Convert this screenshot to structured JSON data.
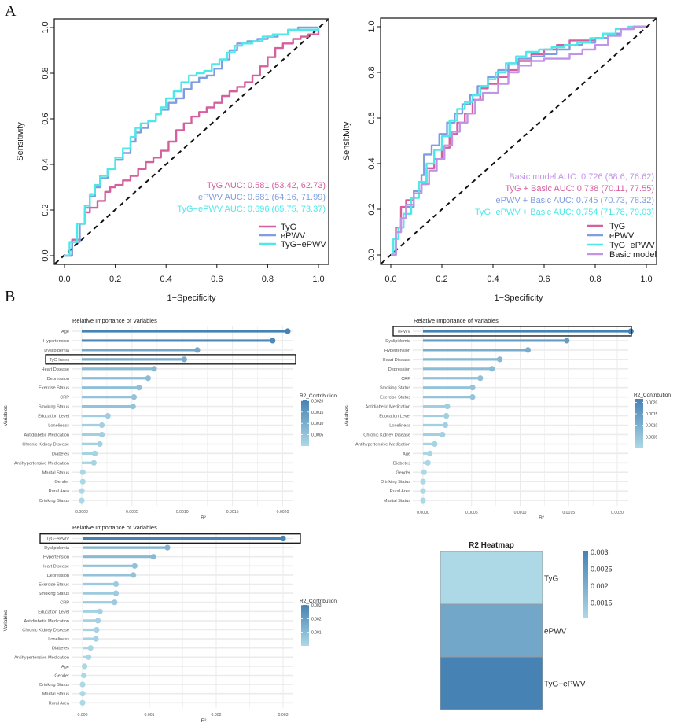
{
  "panels": {
    "a_label": "A",
    "b_label": "B"
  },
  "chart_data": [
    {
      "id": "roc_single",
      "type": "line",
      "title": "",
      "xlabel": "1−Specificity",
      "ylabel": "Sensitivity",
      "xlim": [
        0,
        1
      ],
      "ylim": [
        0,
        1
      ],
      "x_ticks": [
        "0.0",
        "0.2",
        "0.4",
        "0.6",
        "0.8",
        "1.0"
      ],
      "y_ticks": [
        "0.0",
        "0.2",
        "0.4",
        "0.6",
        "0.8",
        "1.0"
      ],
      "reference_line": "diagonal dashed",
      "legend_position": "bottom-right",
      "series": [
        {
          "name": "TyG",
          "color": "#d4609e",
          "auc_text": "TyG AUC: 0.581 (53.42, 62.73)",
          "x": [
            0,
            0.03,
            0.06,
            0.08,
            0.1,
            0.13,
            0.16,
            0.18,
            0.2,
            0.23,
            0.26,
            0.29,
            0.32,
            0.35,
            0.38,
            0.41,
            0.44,
            0.47,
            0.5,
            0.53,
            0.56,
            0.59,
            0.62,
            0.65,
            0.68,
            0.71,
            0.74,
            0.77,
            0.8,
            0.83,
            0.86,
            0.9,
            0.93,
            0.96,
            1.0
          ],
          "y": [
            0,
            0.07,
            0.14,
            0.19,
            0.21,
            0.24,
            0.28,
            0.3,
            0.31,
            0.33,
            0.35,
            0.38,
            0.41,
            0.43,
            0.46,
            0.5,
            0.55,
            0.58,
            0.61,
            0.63,
            0.65,
            0.67,
            0.7,
            0.72,
            0.74,
            0.76,
            0.79,
            0.83,
            0.87,
            0.91,
            0.93,
            0.95,
            0.96,
            0.97,
            1.0
          ]
        },
        {
          "name": "ePWV",
          "color": "#7f9de0",
          "auc_text": "ePWV AUC: 0.681 (64.16, 71.99)",
          "x": [
            0,
            0.03,
            0.06,
            0.08,
            0.1,
            0.12,
            0.14,
            0.17,
            0.2,
            0.23,
            0.26,
            0.28,
            0.3,
            0.33,
            0.36,
            0.38,
            0.41,
            0.44,
            0.47,
            0.5,
            0.53,
            0.56,
            0.59,
            0.62,
            0.65,
            0.68,
            0.72,
            0.76,
            0.8,
            0.84,
            0.88,
            0.92,
            0.96,
            1.0
          ],
          "y": [
            0,
            0.06,
            0.14,
            0.21,
            0.26,
            0.3,
            0.34,
            0.38,
            0.42,
            0.45,
            0.5,
            0.54,
            0.56,
            0.59,
            0.62,
            0.64,
            0.67,
            0.69,
            0.73,
            0.76,
            0.78,
            0.79,
            0.82,
            0.86,
            0.9,
            0.93,
            0.94,
            0.95,
            0.96,
            0.97,
            0.99,
            1.0,
            1.0,
            1.0
          ]
        },
        {
          "name": "TyG−ePWV",
          "color": "#4de8e8",
          "auc_text": "TyG−ePWV AUC: 0.696 (65.75, 73.37)",
          "x": [
            0,
            0.02,
            0.05,
            0.08,
            0.1,
            0.12,
            0.14,
            0.17,
            0.2,
            0.23,
            0.26,
            0.28,
            0.3,
            0.33,
            0.36,
            0.38,
            0.4,
            0.43,
            0.46,
            0.49,
            0.52,
            0.55,
            0.58,
            0.61,
            0.64,
            0.67,
            0.7,
            0.74,
            0.78,
            0.82,
            0.86,
            0.88,
            0.92,
            0.96,
            1.0
          ],
          "y": [
            0,
            0.06,
            0.14,
            0.22,
            0.27,
            0.31,
            0.35,
            0.38,
            0.43,
            0.47,
            0.52,
            0.56,
            0.58,
            0.59,
            0.62,
            0.65,
            0.69,
            0.72,
            0.76,
            0.79,
            0.8,
            0.81,
            0.84,
            0.86,
            0.89,
            0.92,
            0.93,
            0.94,
            0.96,
            0.97,
            0.97,
            0.99,
            0.99,
            0.99,
            1.0
          ]
        }
      ]
    },
    {
      "id": "roc_combined",
      "type": "line",
      "title": "",
      "xlabel": "1−Specificity",
      "ylabel": "Sensitivity",
      "xlim": [
        0,
        1
      ],
      "ylim": [
        0,
        1
      ],
      "x_ticks": [
        "0.0",
        "0.2",
        "0.4",
        "0.6",
        "0.8",
        "1.0"
      ],
      "y_ticks": [
        "0.0",
        "0.2",
        "0.4",
        "0.6",
        "0.8",
        "1.0"
      ],
      "reference_line": "diagonal dashed",
      "legend_position": "bottom-right",
      "auc_order": [
        "Basic model",
        "TyG",
        "ePWV",
        "TyG−ePWV"
      ],
      "series": [
        {
          "name": "TyG",
          "color": "#d4609e",
          "auc_text": "TyG + Basic AUC: 0.738 (70.11, 77.55)",
          "x": [
            0,
            0.02,
            0.04,
            0.06,
            0.09,
            0.12,
            0.14,
            0.17,
            0.2,
            0.23,
            0.26,
            0.29,
            0.32,
            0.35,
            0.38,
            0.42,
            0.46,
            0.5,
            0.55,
            0.6,
            0.65,
            0.7,
            0.75,
            0.8,
            0.85,
            0.9,
            0.95,
            1.0
          ],
          "y": [
            0,
            0.12,
            0.21,
            0.24,
            0.27,
            0.31,
            0.38,
            0.42,
            0.47,
            0.53,
            0.58,
            0.62,
            0.68,
            0.73,
            0.75,
            0.78,
            0.81,
            0.85,
            0.88,
            0.9,
            0.92,
            0.94,
            0.94,
            0.95,
            0.97,
            0.99,
            1.0,
            1.0
          ]
        },
        {
          "name": "ePWV",
          "color": "#7f9de0",
          "auc_text": "ePWV + Basic AUC: 0.745 (70.73, 78.32)",
          "x": [
            0,
            0.02,
            0.04,
            0.06,
            0.09,
            0.12,
            0.13,
            0.16,
            0.19,
            0.22,
            0.25,
            0.28,
            0.31,
            0.34,
            0.38,
            0.42,
            0.46,
            0.5,
            0.55,
            0.6,
            0.65,
            0.7,
            0.75,
            0.8,
            0.85,
            0.9,
            0.95,
            1.0
          ],
          "y": [
            0,
            0.1,
            0.16,
            0.21,
            0.28,
            0.35,
            0.44,
            0.48,
            0.53,
            0.58,
            0.62,
            0.66,
            0.7,
            0.74,
            0.78,
            0.81,
            0.84,
            0.86,
            0.87,
            0.88,
            0.9,
            0.92,
            0.93,
            0.95,
            0.97,
            0.99,
            1.0,
            1.0
          ]
        },
        {
          "name": "TyG−ePWV",
          "color": "#4de8e8",
          "auc_text": "TyG−ePWV + Basic AUC: 0.754 (71.78, 79.03)",
          "x": [
            0,
            0.01,
            0.03,
            0.05,
            0.08,
            0.11,
            0.14,
            0.17,
            0.2,
            0.23,
            0.26,
            0.29,
            0.32,
            0.35,
            0.38,
            0.41,
            0.45,
            0.49,
            0.53,
            0.58,
            0.63,
            0.68,
            0.73,
            0.78,
            0.83,
            0.88,
            0.93,
            1.0
          ],
          "y": [
            0,
            0.07,
            0.12,
            0.18,
            0.25,
            0.32,
            0.4,
            0.46,
            0.52,
            0.59,
            0.64,
            0.67,
            0.7,
            0.74,
            0.77,
            0.8,
            0.84,
            0.87,
            0.89,
            0.9,
            0.91,
            0.92,
            0.93,
            0.95,
            0.97,
            0.99,
            1.0,
            1.0
          ]
        },
        {
          "name": "Basic model",
          "color": "#c294e8",
          "auc_text": "Basic model AUC: 0.726 (68.6, 76.62)",
          "x": [
            0,
            0.02,
            0.04,
            0.06,
            0.09,
            0.12,
            0.15,
            0.18,
            0.21,
            0.24,
            0.27,
            0.3,
            0.33,
            0.36,
            0.39,
            0.42,
            0.46,
            0.5,
            0.55,
            0.6,
            0.66,
            0.7,
            0.75,
            0.8,
            0.85,
            0.9,
            0.95,
            1.0
          ],
          "y": [
            0,
            0.1,
            0.16,
            0.22,
            0.27,
            0.31,
            0.37,
            0.42,
            0.48,
            0.54,
            0.58,
            0.62,
            0.68,
            0.71,
            0.71,
            0.75,
            0.8,
            0.83,
            0.85,
            0.86,
            0.86,
            0.88,
            0.9,
            0.92,
            0.96,
            0.99,
            1.0,
            1.0
          ]
        }
      ]
    },
    {
      "id": "importance_tyg",
      "type": "bar",
      "subtype": "lollipop",
      "title": "Relative Importance of Variables",
      "xlabel": "R²",
      "ylabel": "Variables",
      "xlim": [
        0,
        0.0021
      ],
      "x_ticks": [
        0,
        0.0005,
        0.001,
        0.0015,
        0.002
      ],
      "x_tick_labels": [
        "0.0000",
        "0.0005",
        "0.0010",
        "0.0015",
        "0.0020"
      ],
      "highlight": "TyG Index",
      "legend_title": "R2_Contribution",
      "legend_ticks": [
        "0.0020",
        "0.0015",
        "0.0010",
        "0.0005"
      ],
      "legend_range": [
        0,
        0.00205
      ],
      "categories": [
        "Age",
        "Hypertension",
        "Dyslipidemia",
        "TyG Index",
        "Heart Disease",
        "Depression",
        "Exercise Status",
        "CRP",
        "Smoking Status",
        "Education Level",
        "Loneliness",
        "Antidiabetic Medication",
        "Chronic Kidney Disease",
        "Diabetes",
        "Antihypertensive Medication",
        "Marital Status",
        "Gender",
        "Rural Area",
        "Drinking Status"
      ],
      "values": [
        0.00205,
        0.0019,
        0.00115,
        0.00102,
        0.00072,
        0.00066,
        0.00057,
        0.00052,
        0.00051,
        0.00026,
        0.0002,
        0.0002,
        0.00018,
        0.00013,
        0.00012,
        1e-05,
        1e-05,
        0.0,
        0.0
      ]
    },
    {
      "id": "importance_epwv",
      "type": "bar",
      "subtype": "lollipop",
      "title": "Relative Importance of Variables",
      "xlabel": "R²",
      "ylabel": "Variables",
      "xlim": [
        0,
        0.0022
      ],
      "x_ticks": [
        0,
        0.0005,
        0.001,
        0.0015,
        0.002
      ],
      "x_tick_labels": [
        "0.0000",
        "0.0005",
        "0.0010",
        "0.0015",
        "0.0020"
      ],
      "highlight": "ePWV",
      "legend_title": "R2_Contribution",
      "legend_ticks": [
        "0.0020",
        "0.0015",
        "0.0010",
        "0.0005"
      ],
      "legend_range": [
        0,
        0.00215
      ],
      "categories": [
        "ePWV",
        "Dyslipidemia",
        "Hypertension",
        "Heart Disease",
        "Depression",
        "CRP",
        "Smoking Status",
        "Exercise Status",
        "Antidiabetic Medication",
        "Education Level",
        "Loneliness",
        "Chronic Kidney Disease",
        "Antihypertensive Medication",
        "Age",
        "Diabetes",
        "Gender",
        "Drinking Status",
        "Rural Area",
        "Marital Status"
      ],
      "values": [
        0.00214,
        0.00148,
        0.00108,
        0.00079,
        0.00071,
        0.00059,
        0.00051,
        0.00051,
        0.00025,
        0.00024,
        0.00023,
        0.0002,
        0.00012,
        7e-05,
        5e-05,
        1e-05,
        0.0,
        0.0,
        0.0
      ]
    },
    {
      "id": "importance_tyg_epwv",
      "type": "bar",
      "subtype": "lollipop",
      "title": "Relative Importance of Variables",
      "xlabel": "R²",
      "ylabel": "Variables",
      "xlim": [
        0,
        0.00315
      ],
      "x_ticks": [
        0,
        0.001,
        0.002,
        0.003
      ],
      "x_tick_labels": [
        "0.000",
        "0.001",
        "0.002",
        "0.003"
      ],
      "highlight": "TyG−ePWV",
      "legend_title": "R2_Contribution",
      "legend_ticks": [
        "0.003",
        "0.002",
        "0.001"
      ],
      "legend_range": [
        0,
        0.003
      ],
      "categories": [
        "TyG−ePWV",
        "Dyslipidemia",
        "Hypertension",
        "Heart Disease",
        "Depression",
        "Exercise Status",
        "Smoking Status",
        "CRP",
        "Education Level",
        "Antidiabetic Medication",
        "Chronic Kidney Disease",
        "Loneliness",
        "Diabetes",
        "Antihypertensive Medication",
        "Age",
        "Gender",
        "Drinking Status",
        "Marital Status",
        "Rural Area"
      ],
      "values": [
        0.003,
        0.00127,
        0.00106,
        0.00078,
        0.00076,
        0.0005,
        0.0005,
        0.00048,
        0.00026,
        0.00023,
        0.00021,
        0.0002,
        0.00012,
        9e-05,
        3e-05,
        2e-05,
        0.0,
        0.0,
        0.0
      ]
    },
    {
      "id": "r2_heatmap",
      "type": "heatmap",
      "title": "R2 Heatmap",
      "rows": [
        "TyG",
        "ePWV",
        "TyG−ePWV"
      ],
      "values": [
        0.00102,
        0.00214,
        0.003
      ],
      "legend_ticks": [
        "0.003",
        "0.0025",
        "0.002",
        "0.0015"
      ],
      "legend_range": [
        0.00102,
        0.003
      ],
      "colors": {
        "low": "#add8e6",
        "high": "#4682b4"
      }
    }
  ],
  "colors": {
    "gradient_low": "#add8e6",
    "gradient_high": "#4682b4",
    "grid": "#ebebeb"
  }
}
